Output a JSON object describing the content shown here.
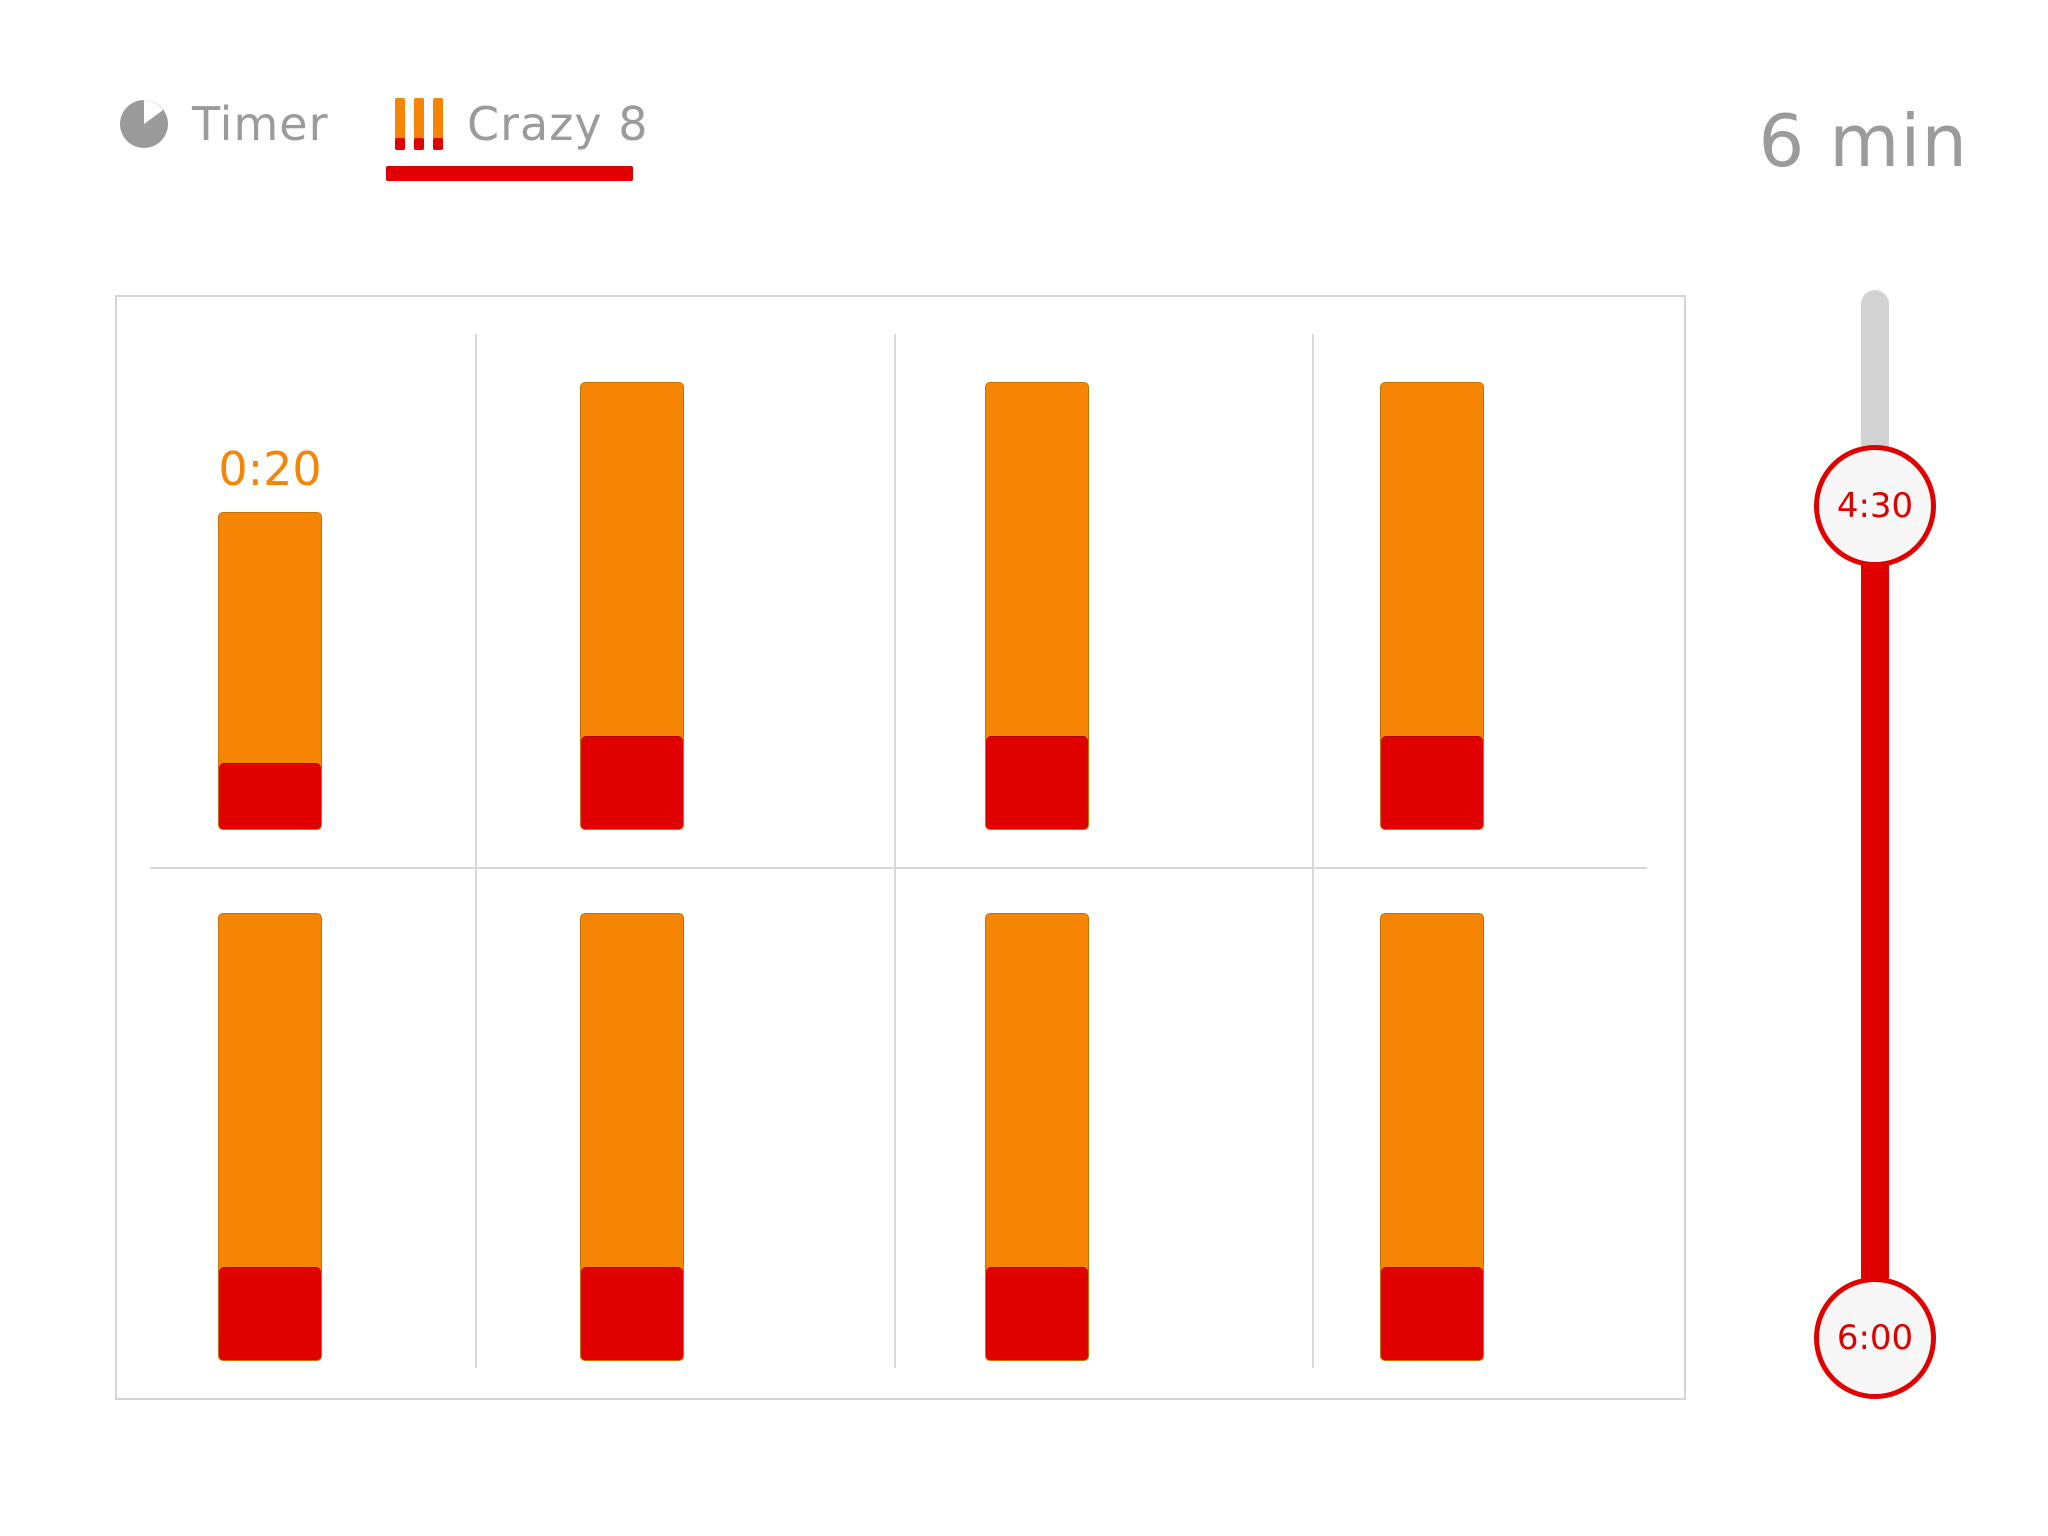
{
  "colors": {
    "accent_red": "#e00000",
    "bar_orange": "#f68505",
    "text_gray": "#9b9b9b",
    "icon_gray": "#9b9b9b",
    "time_orange": "#f68505"
  },
  "tabs": [
    {
      "label": "Timer",
      "icon": "timer-pie-icon",
      "active": false
    },
    {
      "label": "Crazy 8",
      "icon": "three-bars-icon",
      "active": true
    }
  ],
  "header": {
    "duration": "6 min"
  },
  "grid": {
    "rows": 2,
    "columns": 4,
    "active_bar_time": "0:20",
    "bars": [
      {
        "index": 1,
        "remaining_fraction": 0.71,
        "active": true
      },
      {
        "index": 2,
        "remaining_fraction": 1.0,
        "active": false
      },
      {
        "index": 3,
        "remaining_fraction": 1.0,
        "active": false
      },
      {
        "index": 4,
        "remaining_fraction": 1.0,
        "active": false
      },
      {
        "index": 5,
        "remaining_fraction": 1.0,
        "active": false
      },
      {
        "index": 6,
        "remaining_fraction": 1.0,
        "active": false
      },
      {
        "index": 7,
        "remaining_fraction": 1.0,
        "active": false
      },
      {
        "index": 8,
        "remaining_fraction": 1.0,
        "active": false
      }
    ]
  },
  "slider": {
    "start_label": "4:30",
    "end_label": "6:00"
  }
}
